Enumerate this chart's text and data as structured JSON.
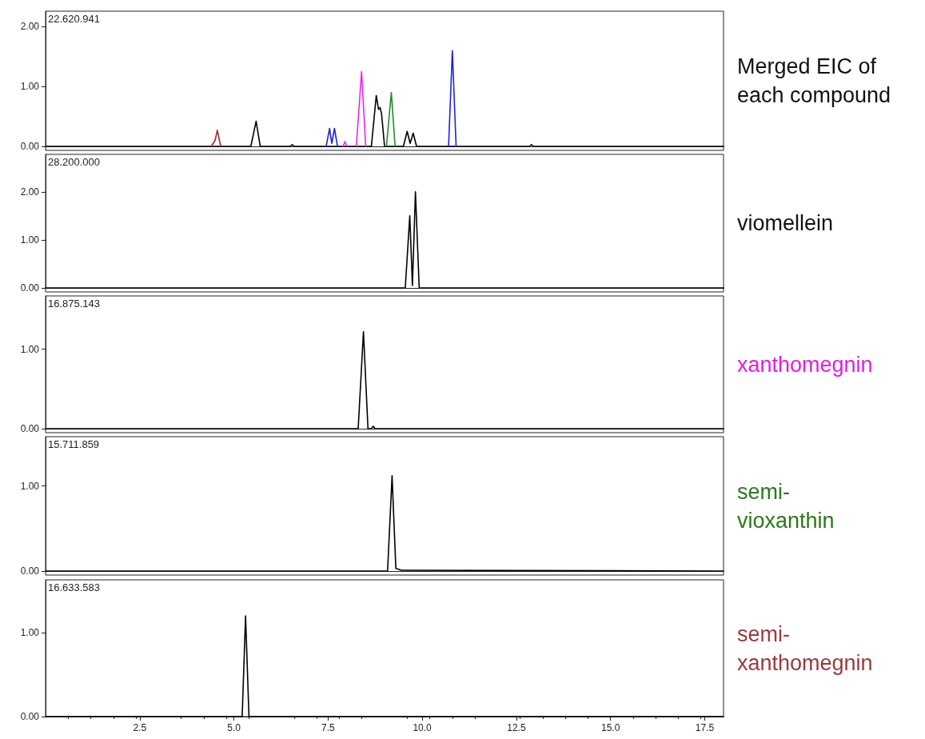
{
  "chart_data": [
    {
      "type": "line",
      "annotations": [
        "22.620.941",
        "Merged EIC of\neach compound"
      ],
      "xlim": [
        0,
        18
      ],
      "ylim": [
        0,
        2.26
      ],
      "yticks": [
        {
          "value": 0,
          "label": "0.00"
        },
        {
          "value": 1,
          "label": "1.00"
        },
        {
          "value": 2,
          "label": "2.00"
        }
      ],
      "tick_labels": "y",
      "marker": "none",
      "series": [
        {
          "color": "#000000",
          "x": [
            0,
            5.45,
            5.59,
            5.7,
            6.5,
            6.55,
            6.6,
            8.65,
            8.78,
            8.84,
            8.88,
            8.92,
            9.0,
            9.5,
            9.6,
            9.68,
            9.76,
            9.85,
            10.0,
            12.85,
            12.9,
            12.95,
            18
          ],
          "values": [
            0,
            0,
            0.42,
            0,
            0,
            0.03,
            0,
            0,
            0.85,
            0.62,
            0.65,
            0.55,
            0,
            0,
            0.25,
            0.05,
            0.22,
            0,
            0,
            0,
            0.03,
            0,
            0
          ]
        },
        {
          "color": "#a0282a",
          "x": [
            4.4,
            4.5,
            4.56,
            4.65
          ],
          "values": [
            0,
            0.1,
            0.27,
            0
          ]
        },
        {
          "color": "#1f1fe6",
          "x": [
            7.45,
            7.54,
            7.6,
            7.67,
            7.75,
            9.0,
            10.7,
            10.8,
            10.9
          ],
          "values": [
            0,
            0.3,
            0.05,
            0.3,
            0,
            null,
            0,
            1.6,
            0
          ]
        },
        {
          "color": "#ee22ee",
          "x": [
            7.9,
            7.95,
            8.0,
            8.1,
            8.25,
            8.39,
            8.5
          ],
          "values": [
            0,
            0.08,
            0,
            null,
            0,
            1.25,
            0
          ]
        },
        {
          "color": "#1e8c1e",
          "x": [
            9.05,
            9.18,
            9.28
          ],
          "values": [
            0,
            0.9,
            0
          ]
        }
      ]
    },
    {
      "type": "line",
      "annotations": [
        "28.200.000",
        "viomellein"
      ],
      "xlim": [
        0,
        18
      ],
      "ylim": [
        0,
        2.78
      ],
      "yticks": [
        {
          "value": 0,
          "label": "0.00"
        },
        {
          "value": 1,
          "label": "1.00"
        },
        {
          "value": 2,
          "label": "2.00"
        }
      ],
      "tick_labels": "y",
      "marker": "none",
      "series": [
        {
          "color": "#000000",
          "x": [
            0,
            9.55,
            9.67,
            9.74,
            9.82,
            9.92,
            18
          ],
          "values": [
            0,
            0,
            1.5,
            0.05,
            2.0,
            0,
            0
          ]
        }
      ]
    },
    {
      "type": "line",
      "annotations": [
        "16.875.143",
        "xanthomegnin"
      ],
      "xlim": [
        0,
        18
      ],
      "ylim": [
        0,
        1.67
      ],
      "yticks": [
        {
          "value": 0,
          "label": "0.00"
        },
        {
          "value": 1,
          "label": "1.00"
        }
      ],
      "tick_labels": "y",
      "marker": "none",
      "series": [
        {
          "color": "#000000",
          "x": [
            0,
            8.3,
            8.44,
            8.56,
            8.65,
            8.7,
            8.75,
            18
          ],
          "values": [
            0,
            0,
            1.22,
            0,
            0,
            0.03,
            0,
            0
          ]
        }
      ]
    },
    {
      "type": "line",
      "annotations": [
        "15.711.859",
        "semi-\nvioxanthin"
      ],
      "xlim": [
        0,
        18
      ],
      "ylim": [
        0,
        1.58
      ],
      "yticks": [
        {
          "value": 0,
          "label": "0.00"
        },
        {
          "value": 1,
          "label": "1.00"
        }
      ],
      "tick_labels": "y",
      "marker": "none",
      "series": [
        {
          "color": "#000000",
          "x": [
            0,
            9.08,
            9.2,
            9.3,
            9.45,
            18
          ],
          "values": [
            0,
            0,
            1.12,
            0.03,
            0.01,
            0
          ]
        }
      ]
    },
    {
      "type": "line",
      "annotations": [
        "16.633.583",
        "semi-\nxanthomegnin"
      ],
      "xlim": [
        0,
        18
      ],
      "xticks": [
        {
          "value": 2.5,
          "label": "2.5"
        },
        {
          "value": 5,
          "label": "5.0"
        },
        {
          "value": 7.5,
          "label": "7.5"
        },
        {
          "value": 10,
          "label": "10.0"
        },
        {
          "value": 12.5,
          "label": "12.5"
        },
        {
          "value": 15,
          "label": "15.0"
        },
        {
          "value": 17.5,
          "label": "17.5"
        }
      ],
      "ylim": [
        0,
        1.63
      ],
      "yticks": [
        {
          "value": 0,
          "label": "0.00"
        },
        {
          "value": 1,
          "label": "1.00"
        }
      ],
      "marker": "none",
      "series": [
        {
          "color": "#000000",
          "x": [
            0,
            5.22,
            5.31,
            5.4,
            18
          ],
          "values": [
            0,
            0,
            1.2,
            0,
            0
          ]
        }
      ]
    }
  ]
}
